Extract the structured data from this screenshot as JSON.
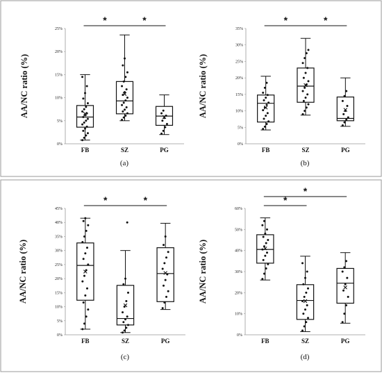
{
  "chart_data": [
    {
      "type": "box",
      "panel_label": "(a)",
      "ylabel": "AA/NC ratio (%)",
      "ylim": [
        0,
        25
      ],
      "yticks": [
        "0%",
        "5%",
        "10%",
        "15%",
        "20%",
        "25%"
      ],
      "categories": [
        "FB",
        "SZ",
        "PG"
      ],
      "boxes": [
        {
          "min": 0.8,
          "q1": 3.6,
          "median": 5.8,
          "q3": 8.3,
          "max": 15.0,
          "mean": 6.5,
          "points": [
            0.8,
            1.3,
            1.8,
            2.3,
            2.8,
            3.3,
            3.7,
            4.2,
            4.6,
            5.0,
            5.4,
            5.8,
            6.2,
            6.6,
            7.0,
            7.5,
            8.0,
            8.8,
            9.8,
            11.0,
            12.5,
            14.5
          ]
        },
        {
          "min": 5.0,
          "q1": 6.5,
          "median": 9.3,
          "q3": 13.5,
          "max": 23.6,
          "mean": 10.8,
          "points": [
            5.2,
            5.7,
            6.1,
            6.6,
            7.0,
            7.4,
            7.9,
            8.4,
            8.9,
            9.4,
            10.0,
            10.6,
            11.2,
            11.8,
            12.5,
            13.5,
            14.5,
            15.5,
            17.0,
            18.5
          ]
        },
        {
          "min": 2.0,
          "q1": 4.0,
          "median": 6.0,
          "q3": 8.1,
          "max": 10.6,
          "mean": 5.8,
          "points": [
            2.2,
            2.8,
            3.6,
            4.3,
            5.0,
            5.6,
            6.1,
            6.6,
            7.2
          ]
        }
      ],
      "significance": [
        {
          "from": "FB",
          "to": "SZ",
          "label": "*"
        },
        {
          "from": "SZ",
          "to": "PG",
          "label": "*"
        }
      ]
    },
    {
      "type": "box",
      "panel_label": "(b)",
      "ylabel": "AA/NC ratio (%)",
      "ylim": [
        0,
        35
      ],
      "yticks": [
        "0%",
        "5%",
        "10%",
        "15%",
        "20%",
        "25%",
        "30%",
        "35%"
      ],
      "categories": [
        "FB",
        "SZ",
        "PG"
      ],
      "boxes": [
        {
          "min": 4.2,
          "q1": 6.6,
          "median": 12.3,
          "q3": 14.8,
          "max": 20.5,
          "mean": 11.0,
          "points": [
            4.5,
            5.2,
            6.0,
            6.8,
            7.6,
            8.5,
            9.3,
            10.2,
            11.0,
            11.8,
            12.5,
            13.2,
            14.0,
            14.8,
            15.5,
            17.0,
            18.5
          ]
        },
        {
          "min": 8.7,
          "q1": 12.6,
          "median": 17.5,
          "q3": 23.0,
          "max": 32.0,
          "mean": 17.8,
          "points": [
            9.0,
            10.0,
            11.0,
            12.0,
            13.0,
            14.0,
            15.0,
            16.0,
            17.0,
            18.0,
            19.0,
            20.0,
            21.5,
            23.0,
            24.5,
            26.0,
            27.5,
            28.5
          ]
        },
        {
          "min": 5.3,
          "q1": 7.0,
          "median": 7.7,
          "q3": 14.2,
          "max": 20.0,
          "mean": 10.3,
          "points": [
            5.6,
            6.5,
            7.3,
            8.0,
            9.0,
            10.0,
            11.5,
            13.0,
            14.5,
            16.0
          ]
        }
      ],
      "significance": [
        {
          "from": "FB",
          "to": "SZ",
          "label": "*"
        },
        {
          "from": "SZ",
          "to": "PG",
          "label": "*"
        }
      ]
    },
    {
      "type": "box",
      "panel_label": "(c)",
      "ylabel": "AA/NC ratio (%)",
      "ylim": [
        0,
        45
      ],
      "yticks": [
        "0%",
        "5%",
        "10%",
        "15%",
        "20%",
        "25%",
        "30%",
        "35%",
        "40%",
        "45%"
      ],
      "categories": [
        "FB",
        "SZ",
        "PG"
      ],
      "boxes": [
        {
          "min": 2.0,
          "q1": 12.3,
          "median": 24.7,
          "q3": 32.7,
          "max": 41.5,
          "mean": 22.5,
          "points": [
            2.0,
            4.0,
            6.5,
            9.0,
            11.5,
            14.0,
            16.5,
            19.0,
            21.0,
            23.0,
            25.0,
            27.0,
            29.0,
            31.0,
            33.0,
            35.0,
            37.0,
            39.0,
            40.5,
            41.5
          ]
        },
        {
          "min": 0.8,
          "q1": 3.5,
          "median": 5.8,
          "q3": 17.6,
          "max": 30.0,
          "mean": 10.5,
          "points": [
            0.8,
            1.5,
            2.5,
            3.5,
            4.5,
            5.5,
            6.5,
            8.0,
            10.0,
            12.0,
            15.0,
            18.0,
            20.0,
            40.0
          ]
        },
        {
          "min": 9.0,
          "q1": 11.8,
          "median": 21.8,
          "q3": 31.0,
          "max": 39.7,
          "mean": 22.0,
          "points": [
            9.5,
            11.5,
            13.5,
            15.5,
            17.5,
            19.5,
            21.5,
            23.5,
            25.5,
            27.5,
            29.5,
            32.0,
            35.0
          ]
        }
      ],
      "significance": [
        {
          "from": "FB",
          "to": "SZ",
          "label": "*"
        },
        {
          "from": "SZ",
          "to": "PG",
          "label": "*"
        }
      ]
    },
    {
      "type": "box",
      "panel_label": "(d)",
      "ylabel": "AA/NC ratio (%)",
      "ylim": [
        0,
        60
      ],
      "yticks": [
        "0%",
        "10%",
        "20%",
        "30%",
        "40%",
        "50%",
        "60%"
      ],
      "categories": [
        "FB",
        "SZ",
        "PG"
      ],
      "boxes": [
        {
          "min": 26.0,
          "q1": 34.0,
          "median": 40.5,
          "q3": 47.5,
          "max": 55.5,
          "mean": 41.0,
          "points": [
            26.5,
            29.0,
            31.5,
            33.5,
            35.5,
            37.5,
            39.0,
            40.5,
            42.0,
            43.5,
            45.0,
            46.5,
            48.0,
            50.0,
            52.0,
            54.0
          ]
        },
        {
          "min": 1.5,
          "q1": 7.3,
          "median": 16.3,
          "q3": 23.8,
          "max": 37.3,
          "mean": 16.0,
          "points": [
            2.0,
            4.0,
            6.0,
            8.0,
            10.0,
            12.0,
            14.0,
            16.0,
            18.0,
            20.0,
            22.0,
            24.0,
            27.0,
            30.0,
            34.0
          ]
        },
        {
          "min": 5.5,
          "q1": 15.0,
          "median": 24.5,
          "q3": 31.5,
          "max": 39.0,
          "mean": 22.5,
          "points": [
            6.0,
            10.0,
            14.0,
            18.0,
            21.0,
            24.0,
            27.0,
            30.0,
            32.0,
            35.0
          ]
        }
      ],
      "significance": [
        {
          "from": "FB",
          "to": "SZ",
          "label": "*"
        },
        {
          "from": "FB",
          "to": "PG",
          "label": "*"
        }
      ]
    }
  ]
}
